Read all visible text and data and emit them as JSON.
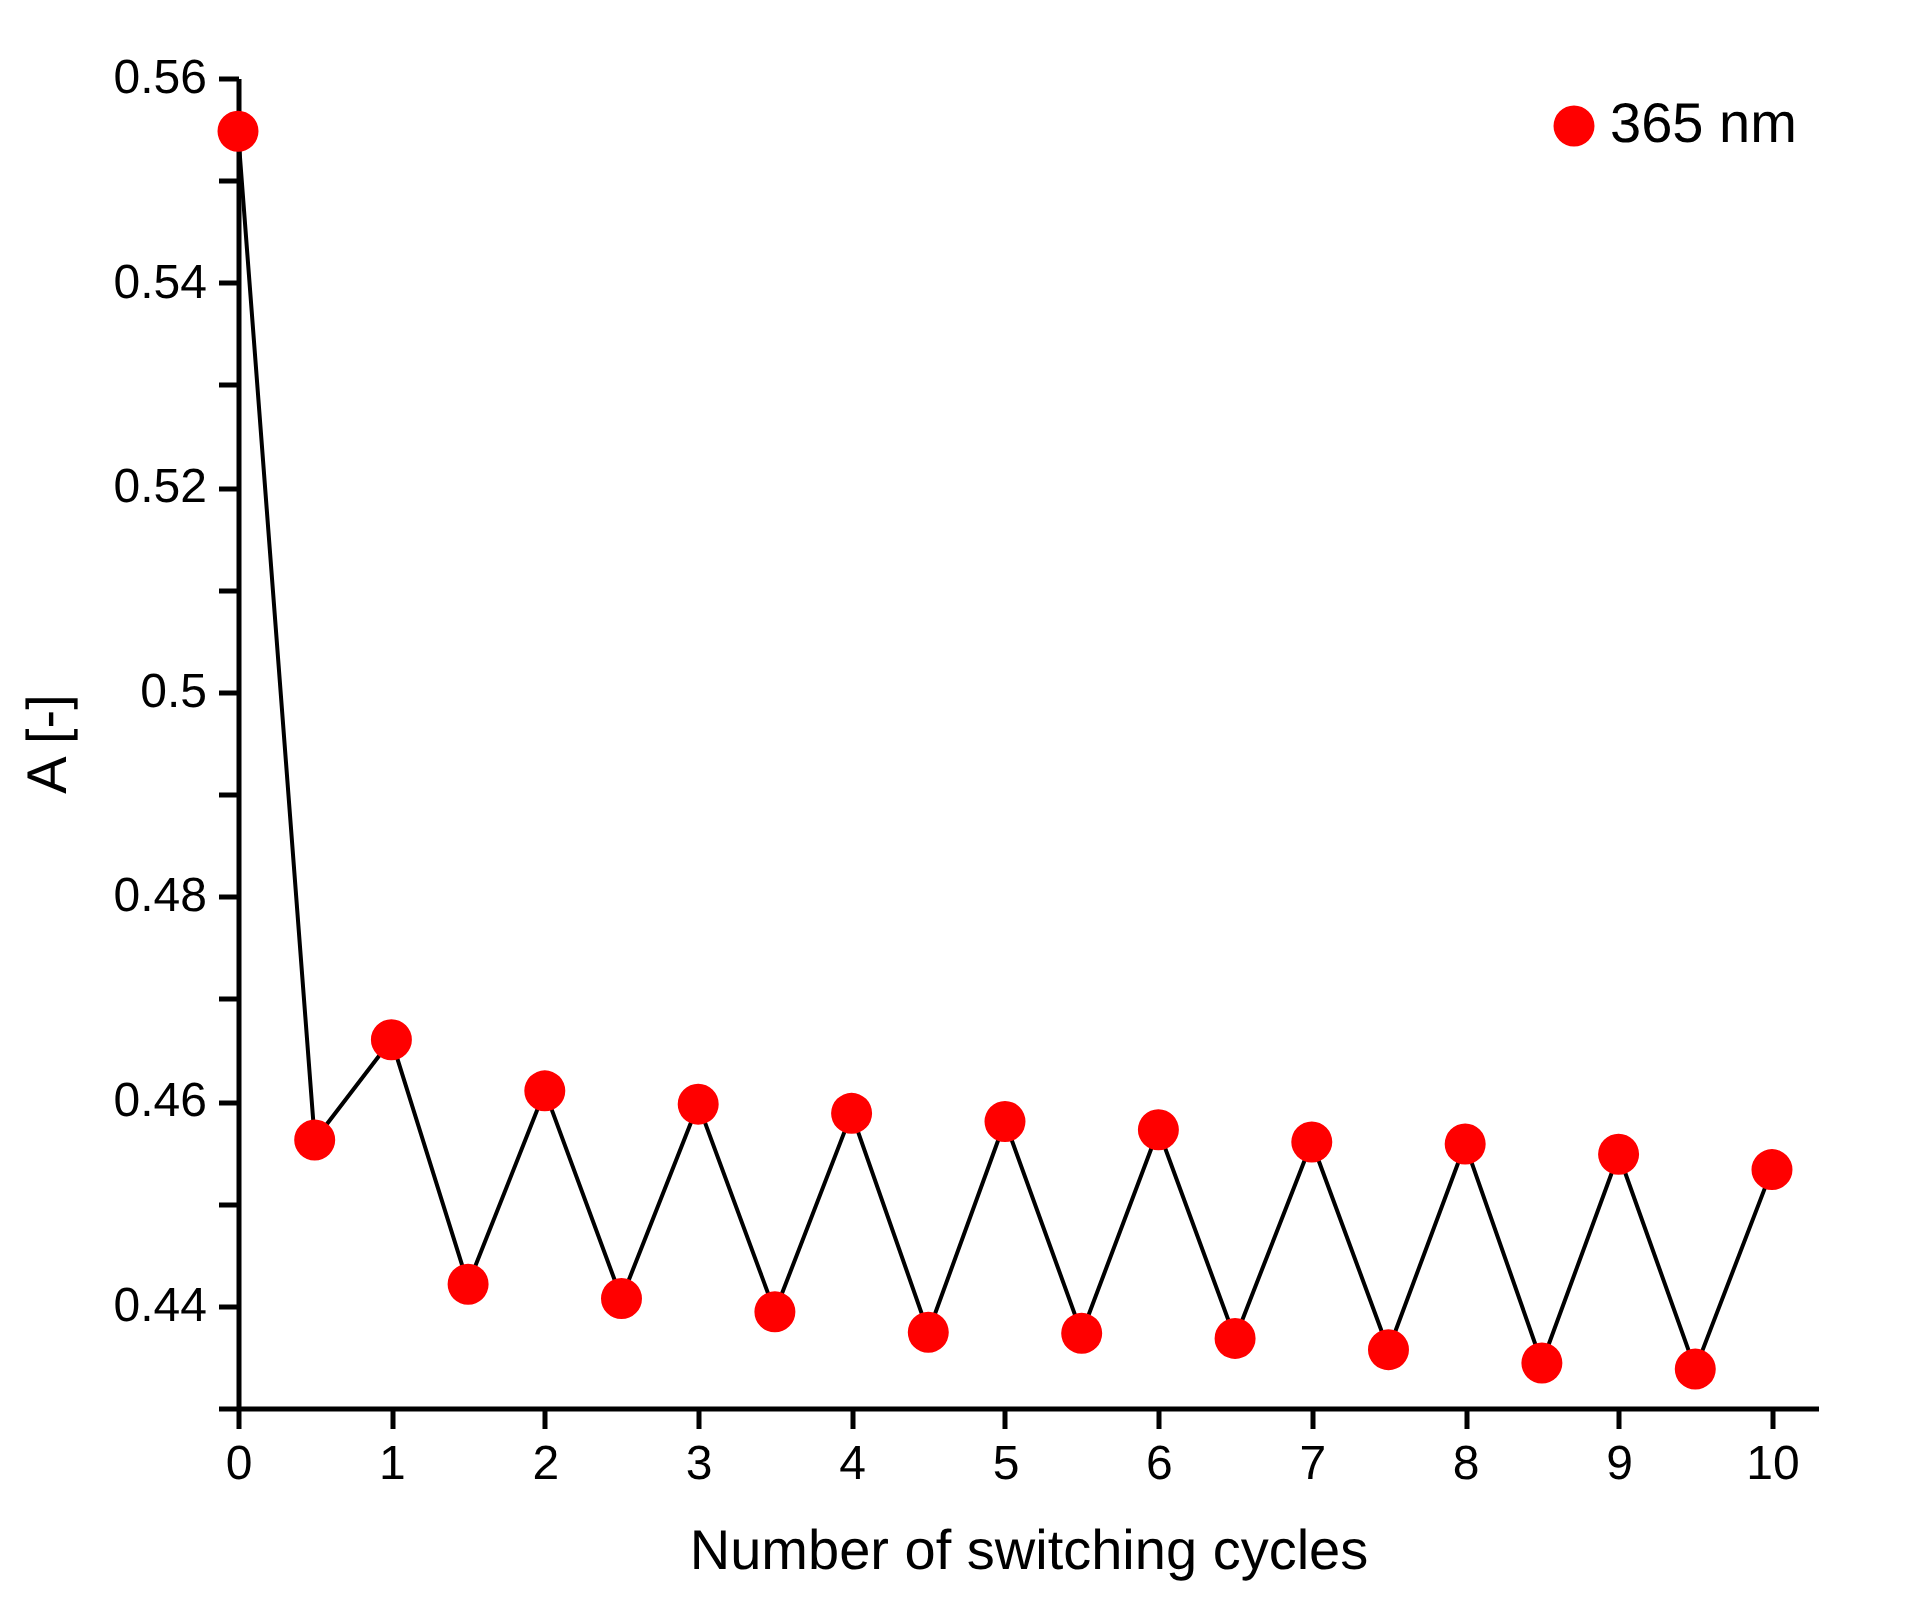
{
  "chart_data": {
    "type": "line",
    "xlabel": "Number of switching cycles",
    "ylabel": "A [-]",
    "x": [
      0,
      0.5,
      1,
      1.5,
      2,
      2.5,
      3,
      3.5,
      4,
      4.5,
      5,
      5.5,
      6,
      6.5,
      7,
      7.5,
      8,
      8.5,
      9,
      9.5,
      10
    ],
    "series": [
      {
        "name": "365 nm",
        "color": "#ff0000",
        "values": [
          0.5548,
          0.4562,
          0.466,
          0.4421,
          0.461,
          0.4407,
          0.4597,
          0.4394,
          0.4588,
          0.4374,
          0.458,
          0.4373,
          0.4572,
          0.4368,
          0.456,
          0.4357,
          0.4558,
          0.4344,
          0.4548,
          0.4338,
          0.4533
        ]
      }
    ],
    "xlim": [
      0,
      10.3
    ],
    "xticks": [
      0,
      1,
      2,
      3,
      4,
      5,
      6,
      7,
      8,
      9,
      10
    ],
    "ylim": [
      0.43,
      0.56
    ],
    "yticks": [
      {
        "value": 0.43,
        "label": null
      },
      0.44,
      {
        "value": 0.45,
        "label": null
      },
      0.46,
      {
        "value": 0.47,
        "label": null
      },
      0.48,
      {
        "value": 0.49,
        "label": null
      },
      0.5,
      {
        "value": 0.51,
        "label": null
      },
      0.52,
      {
        "value": 0.53,
        "label": null
      },
      0.54,
      {
        "value": 0.55,
        "label": null
      },
      0.56
    ],
    "marker": "circle",
    "line_style": "solid",
    "grid": false,
    "legend": "top right"
  }
}
